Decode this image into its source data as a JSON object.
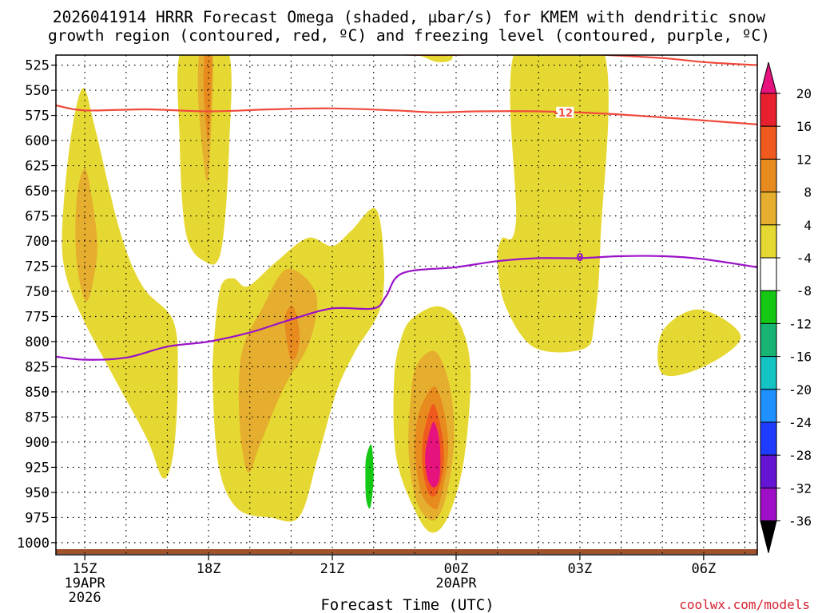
{
  "chart_data": {
    "type": "heatmap",
    "title_line1": "2026041914 HRRR Forecast Omega (shaded, µbar/s) for KMEM with dendritic snow",
    "title_line2": "growth region (contoured, red, ºC) and freezing level (contoured, purple, ºC)",
    "xlabel": "Forecast Time (UTC)",
    "watermark": "coolwx.com/models",
    "y_axis": {
      "unit": "hPa",
      "range": [
        515,
        1012
      ],
      "tick_labels": [
        "525",
        "550",
        "575",
        "600",
        "625",
        "650",
        "675",
        "700",
        "725",
        "750",
        "775",
        "800",
        "825",
        "850",
        "875",
        "900",
        "925",
        "950",
        "975",
        "1000"
      ]
    },
    "x_axis": {
      "unit": "hour from 15Z 19APR 2026",
      "range": [
        -0.7,
        16.3
      ],
      "ticks": [
        {
          "hour": 0,
          "label": "15Z",
          "sub1": "19APR",
          "sub2": "2026"
        },
        {
          "hour": 3,
          "label": "18Z",
          "sub1": "",
          "sub2": ""
        },
        {
          "hour": 6,
          "label": "21Z",
          "sub1": "",
          "sub2": ""
        },
        {
          "hour": 9,
          "label": "00Z",
          "sub1": "20APR",
          "sub2": ""
        },
        {
          "hour": 12,
          "label": "03Z",
          "sub1": "",
          "sub2": ""
        },
        {
          "hour": 15,
          "label": "06Z",
          "sub1": "",
          "sub2": ""
        }
      ]
    },
    "colorbar": {
      "labels": [
        "20",
        "16",
        "12",
        "8",
        "4",
        "-4",
        "-8",
        "-12",
        "-16",
        "-20",
        "-24",
        "-28",
        "-32",
        "-36"
      ],
      "colors": [
        "#e8202e",
        "#f05a1e",
        "#e88b1e",
        "#e5ae2e",
        "#e6d832",
        "#ffffff",
        "#14c814",
        "#17b473",
        "#14c3c3",
        "#1e90ff",
        "#1e3cff",
        "#6414d2",
        "#a00fc8",
        "#aaaaaa"
      ],
      "top_color": "#e6127e",
      "bottom_color": "#000000"
    },
    "contours": [
      {
        "name": "dgz-top",
        "color": "#f04a3c",
        "label": "",
        "points": [
          [
            5.7,
            513
          ],
          [
            7,
            514
          ],
          [
            8.5,
            515
          ],
          [
            10,
            514
          ],
          [
            12,
            514
          ],
          [
            14,
            518
          ],
          [
            15,
            522
          ],
          [
            16.3,
            525
          ]
        ]
      },
      {
        "name": "dgz-minus12",
        "color": "#f04a3c",
        "label": "-12",
        "label_at": [
          11.6,
          572
        ],
        "points": [
          [
            -0.7,
            565
          ],
          [
            0,
            570
          ],
          [
            1.5,
            569
          ],
          [
            3,
            571
          ],
          [
            4.5,
            569
          ],
          [
            6,
            568
          ],
          [
            7.5,
            570
          ],
          [
            8.5,
            572
          ],
          [
            9.5,
            571
          ],
          [
            11,
            571
          ],
          [
            12.5,
            573
          ],
          [
            14,
            577
          ],
          [
            15,
            580
          ],
          [
            16.3,
            584
          ]
        ]
      },
      {
        "name": "freezing-level",
        "color": "#9a12c8",
        "label": "0",
        "label_at": [
          12,
          716
        ],
        "points": [
          [
            -0.7,
            815
          ],
          [
            0,
            818
          ],
          [
            1,
            816
          ],
          [
            2,
            805
          ],
          [
            3,
            800
          ],
          [
            4,
            791
          ],
          [
            5,
            778
          ],
          [
            6,
            767
          ],
          [
            7,
            767
          ],
          [
            7.3,
            755
          ],
          [
            7.7,
            732
          ],
          [
            9,
            726
          ],
          [
            10,
            720
          ],
          [
            11,
            717
          ],
          [
            12,
            717
          ],
          [
            13,
            715
          ],
          [
            14,
            715
          ],
          [
            15,
            718
          ],
          [
            16.3,
            726
          ]
        ]
      }
    ],
    "regions": [
      {
        "name": "omega-4-a",
        "level": "4",
        "points": [
          [
            -0.55,
            690
          ],
          [
            -0.35,
            600
          ],
          [
            -0.05,
            548
          ],
          [
            0.25,
            588
          ],
          [
            0.85,
            690
          ],
          [
            1.4,
            745
          ],
          [
            2.15,
            780
          ],
          [
            2.25,
            840
          ],
          [
            2.15,
            910
          ],
          [
            1.9,
            936
          ],
          [
            1.5,
            896
          ],
          [
            0.7,
            835
          ],
          [
            -0.05,
            777
          ],
          [
            -0.45,
            735
          ]
        ]
      },
      {
        "name": "omega-8-a",
        "level": "8",
        "points": [
          [
            -0.2,
            660
          ],
          [
            0,
            628
          ],
          [
            0.2,
            665
          ],
          [
            0.3,
            712
          ],
          [
            0.05,
            760
          ],
          [
            -0.2,
            720
          ]
        ]
      },
      {
        "name": "omega-4-b",
        "level": "4",
        "points": [
          [
            2.35,
            508
          ],
          [
            3.45,
            508
          ],
          [
            3.5,
            605
          ],
          [
            3.3,
            710
          ],
          [
            2.9,
            720
          ],
          [
            2.45,
            692
          ],
          [
            2.3,
            600
          ]
        ]
      },
      {
        "name": "omega-8-b",
        "level": "8",
        "points": [
          [
            2.8,
            508
          ],
          [
            3.1,
            508
          ],
          [
            3.05,
            600
          ],
          [
            2.95,
            640
          ],
          [
            2.75,
            560
          ]
        ]
      },
      {
        "name": "omega-12-b",
        "level": "12",
        "points": [
          [
            2.92,
            508
          ],
          [
            3.07,
            508
          ],
          [
            3.05,
            570
          ],
          [
            2.98,
            600
          ],
          [
            2.88,
            550
          ]
        ]
      },
      {
        "name": "omega-4-c",
        "level": "4",
        "points": [
          [
            3.3,
            745
          ],
          [
            3.6,
            737
          ],
          [
            3.95,
            745
          ],
          [
            4.6,
            722
          ],
          [
            5.4,
            697
          ],
          [
            6,
            705
          ],
          [
            6.45,
            690
          ],
          [
            7.05,
            668
          ],
          [
            7.25,
            720
          ],
          [
            7.15,
            768
          ],
          [
            6.55,
            810
          ],
          [
            6.1,
            850
          ],
          [
            5.65,
            915
          ],
          [
            5.2,
            974
          ],
          [
            4.5,
            975
          ],
          [
            3.7,
            966
          ],
          [
            3.25,
            925
          ],
          [
            3.1,
            842
          ],
          [
            3.15,
            790
          ]
        ]
      },
      {
        "name": "omega-8-c",
        "level": "8",
        "points": [
          [
            3.8,
            812
          ],
          [
            4.3,
            767
          ],
          [
            4.9,
            728
          ],
          [
            5.6,
            752
          ],
          [
            5.45,
            800
          ],
          [
            4.8,
            848
          ],
          [
            4.25,
            902
          ],
          [
            3.95,
            930
          ],
          [
            3.75,
            880
          ]
        ]
      },
      {
        "name": "omega-12-c",
        "level": "12",
        "points": [
          [
            4.85,
            775
          ],
          [
            5.05,
            765
          ],
          [
            5.2,
            790
          ],
          [
            5.15,
            812
          ],
          [
            5.0,
            818
          ],
          [
            4.9,
            800
          ]
        ]
      },
      {
        "name": "omega--4-d",
        "level": "-4",
        "points": [
          [
            4.9,
            508
          ],
          [
            6.95,
            508
          ],
          [
            6.7,
            585
          ],
          [
            6.1,
            630
          ],
          [
            5.55,
            665
          ],
          [
            4.95,
            675
          ],
          [
            4.85,
            590
          ]
        ]
      },
      {
        "name": "omega-4-e",
        "level": "4",
        "points": [
          [
            7.25,
            508
          ],
          [
            8.7,
            508
          ],
          [
            8.9,
            519
          ],
          [
            8.55,
            522
          ],
          [
            8.05,
            515
          ],
          [
            7.35,
            514
          ]
        ]
      },
      {
        "name": "omega-4-f",
        "level": "4",
        "points": [
          [
            10.45,
            508
          ],
          [
            12.55,
            508
          ],
          [
            12.5,
            700
          ],
          [
            12.35,
            780
          ],
          [
            12.1,
            807
          ],
          [
            10.9,
            806
          ],
          [
            10.2,
            765
          ],
          [
            10.0,
            720
          ],
          [
            10.1,
            698
          ],
          [
            10.45,
            680
          ]
        ]
      },
      {
        "name": "omega-4-g",
        "level": "4",
        "points": [
          [
            8.0,
            775
          ],
          [
            8.6,
            765
          ],
          [
            9.1,
            783
          ],
          [
            9.35,
            830
          ],
          [
            9.2,
            915
          ],
          [
            8.85,
            970
          ],
          [
            8.45,
            990
          ],
          [
            8.05,
            972
          ],
          [
            7.55,
            915
          ],
          [
            7.5,
            835
          ],
          [
            7.7,
            793
          ]
        ]
      },
      {
        "name": "omega-8-g",
        "level": "8",
        "points": [
          [
            8.05,
            823
          ],
          [
            8.5,
            810
          ],
          [
            8.85,
            845
          ],
          [
            8.95,
            900
          ],
          [
            8.75,
            955
          ],
          [
            8.45,
            978
          ],
          [
            8.05,
            960
          ],
          [
            7.85,
            910
          ],
          [
            7.9,
            855
          ]
        ]
      },
      {
        "name": "omega-12-g",
        "level": "12",
        "points": [
          [
            8.2,
            860
          ],
          [
            8.5,
            845
          ],
          [
            8.75,
            878
          ],
          [
            8.8,
            915
          ],
          [
            8.6,
            960
          ],
          [
            8.45,
            966
          ],
          [
            8.15,
            950
          ],
          [
            8.0,
            910
          ],
          [
            8.05,
            880
          ]
        ]
      },
      {
        "name": "omega-16-g",
        "level": "16",
        "points": [
          [
            8.25,
            885
          ],
          [
            8.45,
            862
          ],
          [
            8.65,
            890
          ],
          [
            8.7,
            920
          ],
          [
            8.55,
            950
          ],
          [
            8.35,
            952
          ],
          [
            8.2,
            930
          ],
          [
            8.18,
            905
          ]
        ]
      },
      {
        "name": "omega-20-g",
        "level": "20",
        "points": [
          [
            8.3,
            900
          ],
          [
            8.45,
            880
          ],
          [
            8.6,
            900
          ],
          [
            8.6,
            935
          ],
          [
            8.45,
            945
          ],
          [
            8.3,
            935
          ],
          [
            8.25,
            915
          ]
        ]
      },
      {
        "name": "omega--4-h",
        "level": "-4",
        "points": [
          [
            15.0,
            537
          ],
          [
            15.6,
            528
          ],
          [
            15.9,
            562
          ],
          [
            16.0,
            585
          ],
          [
            15.7,
            620
          ],
          [
            15.1,
            655
          ],
          [
            14.95,
            672
          ],
          [
            14.85,
            640
          ],
          [
            14.85,
            580
          ]
        ]
      },
      {
        "name": "omega--4-i",
        "level": "-4",
        "points": [
          [
            6.5,
            905
          ],
          [
            6.9,
            863
          ],
          [
            7.05,
            862
          ],
          [
            7.05,
            920
          ],
          [
            7.05,
            975
          ],
          [
            6.75,
            997
          ],
          [
            6.05,
            992
          ],
          [
            6.05,
            945
          ]
        ]
      },
      {
        "name": "omega--8-i",
        "level": "-8",
        "points": [
          [
            6.82,
            915
          ],
          [
            6.95,
            903
          ],
          [
            7.0,
            935
          ],
          [
            6.92,
            965
          ],
          [
            6.82,
            957
          ],
          [
            6.8,
            935
          ]
        ]
      },
      {
        "name": "omega--4-j",
        "level": "-4",
        "points": [
          [
            10.7,
            885
          ],
          [
            11.4,
            873
          ],
          [
            12.3,
            905
          ],
          [
            13.15,
            940
          ],
          [
            13.05,
            968
          ],
          [
            12.0,
            982
          ],
          [
            11.2,
            948
          ],
          [
            10.85,
            920
          ],
          [
            10.7,
            895
          ]
        ]
      },
      {
        "name": "omega-4-k",
        "level": "4",
        "points": [
          [
            14.0,
            790
          ],
          [
            14.9,
            768
          ],
          [
            15.9,
            795
          ],
          [
            15.0,
            825
          ],
          [
            14.0,
            832
          ]
        ]
      }
    ]
  }
}
